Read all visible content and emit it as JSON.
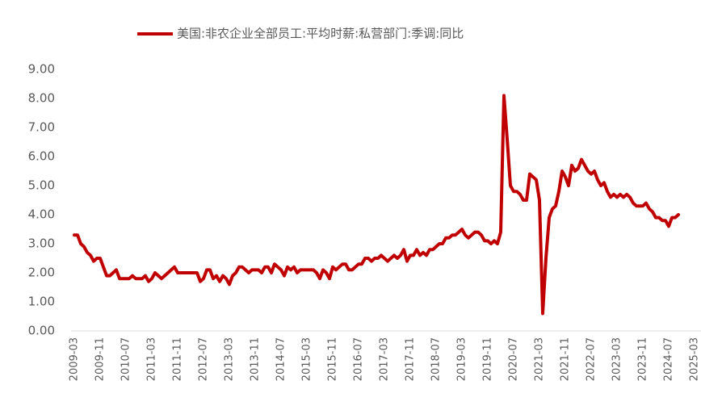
{
  "chart_data": {
    "type": "line",
    "legend": "top",
    "series": [
      {
        "name": "美国:非农企业全部员工:平均时薪:私营部门:季调:同比",
        "color": "#c00000",
        "values": [
          3.3,
          3.3,
          3.0,
          2.9,
          2.7,
          2.6,
          2.4,
          2.5,
          2.5,
          2.2,
          1.9,
          1.9,
          2.0,
          2.1,
          1.8,
          1.8,
          1.8,
          1.8,
          1.9,
          1.8,
          1.8,
          1.8,
          1.9,
          1.7,
          1.8,
          2.0,
          1.9,
          1.8,
          1.9,
          2.0,
          2.1,
          2.2,
          2.0,
          2.0,
          2.0,
          2.0,
          2.0,
          2.0,
          2.0,
          1.7,
          1.8,
          2.1,
          2.1,
          1.8,
          1.9,
          1.7,
          1.9,
          1.8,
          1.6,
          1.9,
          2.0,
          2.2,
          2.2,
          2.1,
          2.0,
          2.1,
          2.1,
          2.1,
          2.0,
          2.2,
          2.2,
          2.0,
          2.3,
          2.2,
          2.1,
          1.9,
          2.2,
          2.1,
          2.2,
          2.0,
          2.1,
          2.1,
          2.1,
          2.1,
          2.1,
          2.0,
          1.8,
          2.1,
          2.0,
          1.8,
          2.2,
          2.1,
          2.2,
          2.3,
          2.3,
          2.1,
          2.1,
          2.2,
          2.3,
          2.3,
          2.5,
          2.5,
          2.4,
          2.5,
          2.5,
          2.6,
          2.5,
          2.4,
          2.5,
          2.6,
          2.5,
          2.6,
          2.8,
          2.4,
          2.6,
          2.6,
          2.8,
          2.6,
          2.7,
          2.6,
          2.8,
          2.8,
          2.9,
          3.0,
          3.0,
          3.2,
          3.2,
          3.3,
          3.3,
          3.4,
          3.5,
          3.3,
          3.2,
          3.3,
          3.4,
          3.4,
          3.3,
          3.1,
          3.1,
          3.0,
          3.1,
          3.0,
          3.4,
          8.1,
          6.6,
          5.0,
          4.8,
          4.8,
          4.7,
          4.5,
          4.5,
          5.4,
          5.3,
          5.2,
          4.5,
          0.6,
          2.5,
          3.9,
          4.2,
          4.3,
          4.8,
          5.5,
          5.3,
          5.0,
          5.7,
          5.5,
          5.6,
          5.9,
          5.7,
          5.5,
          5.4,
          5.5,
          5.2,
          5.0,
          5.1,
          4.8,
          4.6,
          4.7,
          4.6,
          4.7,
          4.6,
          4.7,
          4.6,
          4.4,
          4.3,
          4.3,
          4.3,
          4.4,
          4.2,
          4.1,
          3.9,
          3.9,
          3.8,
          3.8,
          3.6,
          3.9,
          3.9,
          4.0,
          null,
          null,
          null,
          null,
          null
        ]
      }
    ],
    "categories": [
      "2009-03",
      null,
      null,
      null,
      null,
      null,
      null,
      null,
      "2009-11",
      null,
      null,
      null,
      null,
      null,
      null,
      null,
      "2010-07",
      null,
      null,
      null,
      null,
      null,
      null,
      null,
      "2011-03",
      null,
      null,
      null,
      null,
      null,
      null,
      null,
      "2011-11",
      null,
      null,
      null,
      null,
      null,
      null,
      null,
      "2012-07",
      null,
      null,
      null,
      null,
      null,
      null,
      null,
      "2013-03",
      null,
      null,
      null,
      null,
      null,
      null,
      null,
      "2013-11",
      null,
      null,
      null,
      null,
      null,
      null,
      null,
      "2014-07",
      null,
      null,
      null,
      null,
      null,
      null,
      null,
      "2015-03",
      null,
      null,
      null,
      null,
      null,
      null,
      null,
      "2015-11",
      null,
      null,
      null,
      null,
      null,
      null,
      null,
      "2016-07",
      null,
      null,
      null,
      null,
      null,
      null,
      null,
      "2017-03",
      null,
      null,
      null,
      null,
      null,
      null,
      null,
      "2017-11",
      null,
      null,
      null,
      null,
      null,
      null,
      null,
      "2018-07",
      null,
      null,
      null,
      null,
      null,
      null,
      null,
      "2019-03",
      null,
      null,
      null,
      null,
      null,
      null,
      null,
      "2019-11",
      null,
      null,
      null,
      null,
      null,
      null,
      null,
      "2020-07",
      null,
      null,
      null,
      null,
      null,
      null,
      null,
      "2021-03",
      null,
      null,
      null,
      null,
      null,
      null,
      null,
      "2021-11",
      null,
      null,
      null,
      null,
      null,
      null,
      null,
      "2022-07",
      null,
      null,
      null,
      null,
      null,
      null,
      null,
      "2023-03",
      null,
      null,
      null,
      null,
      null,
      null,
      null,
      "2023-11",
      null,
      null,
      null,
      null,
      null,
      null,
      null,
      "2024-07",
      null,
      null,
      null,
      null,
      null,
      null,
      null,
      "2025-03"
    ],
    "ylim": [
      0,
      9
    ],
    "yticks": [
      {
        "value": 0,
        "label": "0.00"
      },
      {
        "value": 1,
        "label": "1.00"
      },
      {
        "value": 2,
        "label": "2.00"
      },
      {
        "value": 3,
        "label": "3.00"
      },
      {
        "value": 4,
        "label": "4.00"
      },
      {
        "value": 5,
        "label": "5.00"
      },
      {
        "value": 6,
        "label": "6.00"
      },
      {
        "value": 7,
        "label": "7.00"
      },
      {
        "value": 8,
        "label": "8.00"
      },
      {
        "value": 9,
        "label": "9.00"
      }
    ],
    "grid": false
  }
}
